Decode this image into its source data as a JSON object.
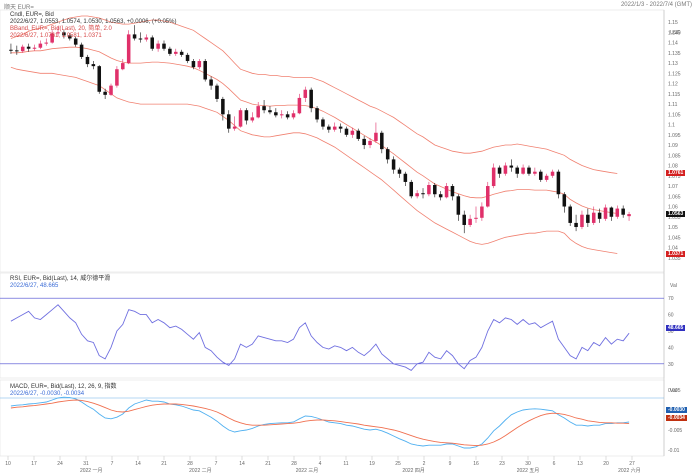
{
  "titlebar": {
    "left": "顺天 EUR=",
    "right": "2022/1/3 - 2022/7/4 (GMT)"
  },
  "price_panel": {
    "legend_line1": "Cndl, EUR=, Bid",
    "legend_line2": "2022/6/27, 1.0553, 1.0574, 1.0530, 1.0563, +0.0006, (+0.05%)",
    "legend_line3": "BBand, EUR=, Bid(Last), 20, 简单, 2.0",
    "legend_line4": "2022/6/27, 1.0761, 1.0581, 1.0371",
    "unit": "USD",
    "y_ticks": [
      "1.15",
      "1.145",
      "1.14",
      "1.135",
      "1.13",
      "1.125",
      "1.12",
      "1.115",
      "1.11",
      "1.105",
      "1.1",
      "1.095",
      "1.09",
      "1.085",
      "1.08",
      "1.075",
      "1.07",
      "1.065",
      "1.06",
      "1.055",
      "1.05",
      "1.045",
      "1.04",
      "1.035"
    ],
    "tag_upper": "1.0761",
    "tag_last": "1.0563",
    "tag_lower": "1.0371",
    "color_up": "#e0306a",
    "color_down": "#111111",
    "color_band": "#f08070"
  },
  "rsi_panel": {
    "legend_line1": "RSI, EUR=, Bid(Last), 14, 威尔德平滑",
    "legend_line2": "2022/6/27, 48.665",
    "unit": "Val",
    "y_ticks": [
      "70",
      "60",
      "50",
      "40",
      "30"
    ],
    "tag_value": "48.665",
    "color": "#7070e0"
  },
  "macd_panel": {
    "legend_line1": "MACD, EUR=, Bid(Last), 12, 26, 9, 指数",
    "legend_line2": "2022/6/27, -0.0030, -0.0034",
    "unit": "Val",
    "y_ticks": [
      "0.005",
      "0",
      "-0.005",
      "-0.01"
    ],
    "tag_macd": "-0.0030",
    "tag_signal": "-0.0034",
    "color_macd": "#50b0f0",
    "color_signal": "#f07050"
  },
  "x_axis": {
    "days": [
      "10",
      "17",
      "24",
      "31",
      "7",
      "14",
      "21",
      "28",
      "7",
      "14",
      "21",
      "28",
      "4",
      "11",
      "19",
      "25",
      "2",
      "9",
      "16",
      "23",
      "30",
      "6",
      "13",
      "20",
      "27"
    ],
    "months": [
      "2022 一月",
      "2022 二月",
      "2022 三月",
      "2022 四月",
      "2022 五月",
      "2022 六月"
    ]
  },
  "chart_data": {
    "type": "candlestick",
    "candles": [
      [
        1.1365,
        1.1362,
        1.1395,
        1.1345
      ],
      [
        1.1362,
        1.136,
        1.1385,
        1.134
      ],
      [
        1.1358,
        1.138,
        1.139,
        1.135
      ],
      [
        1.138,
        1.137,
        1.1395,
        1.1355
      ],
      [
        1.137,
        1.1375,
        1.139,
        1.136
      ],
      [
        1.1375,
        1.1395,
        1.141,
        1.1368
      ],
      [
        1.1395,
        1.14,
        1.142,
        1.1385
      ],
      [
        1.14,
        1.1445,
        1.146,
        1.1395
      ],
      [
        1.1445,
        1.145,
        1.148,
        1.143
      ],
      [
        1.145,
        1.1435,
        1.146,
        1.142
      ],
      [
        1.1435,
        1.142,
        1.1445,
        1.141
      ],
      [
        1.142,
        1.139,
        1.143,
        1.138
      ],
      [
        1.139,
        1.133,
        1.14,
        1.132
      ],
      [
        1.133,
        1.1295,
        1.134,
        1.128
      ],
      [
        1.1295,
        1.1285,
        1.131,
        1.127
      ],
      [
        1.1285,
        1.116,
        1.129,
        1.115
      ],
      [
        1.116,
        1.1145,
        1.1175,
        1.1125
      ],
      [
        1.1145,
        1.119,
        1.12,
        1.114
      ],
      [
        1.119,
        1.127,
        1.1285,
        1.118
      ],
      [
        1.127,
        1.13,
        1.132,
        1.1265
      ],
      [
        1.13,
        1.144,
        1.146,
        1.1295
      ],
      [
        1.144,
        1.142,
        1.1485,
        1.141
      ],
      [
        1.142,
        1.1415,
        1.145,
        1.14
      ],
      [
        1.1415,
        1.1425,
        1.144,
        1.1405
      ],
      [
        1.1425,
        1.137,
        1.1435,
        1.136
      ],
      [
        1.137,
        1.1395,
        1.141,
        1.1355
      ],
      [
        1.1395,
        1.137,
        1.141,
        1.136
      ],
      [
        1.137,
        1.1345,
        1.138,
        1.1335
      ],
      [
        1.1345,
        1.1355,
        1.137,
        1.1335
      ],
      [
        1.1355,
        1.134,
        1.1365,
        1.133
      ],
      [
        1.134,
        1.131,
        1.135,
        1.13
      ],
      [
        1.131,
        1.128,
        1.132,
        1.127
      ],
      [
        1.128,
        1.131,
        1.132,
        1.127
      ],
      [
        1.131,
        1.122,
        1.132,
        1.121
      ],
      [
        1.122,
        1.119,
        1.1235,
        1.117
      ],
      [
        1.119,
        1.1125,
        1.12,
        1.111
      ],
      [
        1.1125,
        1.105,
        1.1135,
        1.102
      ],
      [
        1.105,
        1.098,
        1.107,
        1.096
      ],
      [
        1.098,
        1.099,
        1.104,
        1.097
      ],
      [
        1.099,
        1.107,
        1.108,
        1.0985
      ],
      [
        1.107,
        1.102,
        1.108,
        1.1
      ],
      [
        1.102,
        1.1035,
        1.106,
        1.101
      ],
      [
        1.1035,
        1.109,
        1.111,
        1.103
      ],
      [
        1.109,
        1.107,
        1.112,
        1.1055
      ],
      [
        1.107,
        1.106,
        1.109,
        1.105
      ],
      [
        1.106,
        1.1045,
        1.108,
        1.1035
      ],
      [
        1.1045,
        1.105,
        1.107,
        1.103
      ],
      [
        1.105,
        1.1035,
        1.1065,
        1.1025
      ],
      [
        1.1035,
        1.1055,
        1.107,
        1.1025
      ],
      [
        1.1055,
        1.113,
        1.115,
        1.105
      ],
      [
        1.113,
        1.117,
        1.1185,
        1.111
      ],
      [
        1.117,
        1.108,
        1.118,
        1.106
      ],
      [
        1.108,
        1.1025,
        1.109,
        1.101
      ],
      [
        1.1025,
        1.099,
        1.1035,
        1.0975
      ],
      [
        1.099,
        1.0975,
        1.1,
        1.096
      ],
      [
        1.0975,
        1.099,
        1.101,
        1.0965
      ],
      [
        1.099,
        1.098,
        1.1005,
        1.096
      ],
      [
        1.098,
        1.095,
        1.099,
        1.094
      ],
      [
        1.095,
        1.097,
        1.0985,
        1.0935
      ],
      [
        1.097,
        1.093,
        1.098,
        1.092
      ],
      [
        1.093,
        1.09,
        1.0945,
        1.088
      ],
      [
        1.09,
        1.092,
        1.0935,
        1.0885
      ],
      [
        1.092,
        1.096,
        1.101,
        1.091
      ],
      [
        1.096,
        1.088,
        1.097,
        1.086
      ],
      [
        1.088,
        1.083,
        1.089,
        1.081
      ],
      [
        1.083,
        1.078,
        1.0845,
        1.076
      ],
      [
        1.078,
        1.076,
        1.079,
        1.074
      ],
      [
        1.076,
        1.072,
        1.077,
        1.07
      ],
      [
        1.072,
        1.065,
        1.073,
        1.064
      ],
      [
        1.065,
        1.0665,
        1.068,
        1.064
      ],
      [
        1.0665,
        1.066,
        1.069,
        1.064
      ],
      [
        1.066,
        1.0705,
        1.072,
        1.065
      ],
      [
        1.0705,
        1.066,
        1.0715,
        1.0645
      ],
      [
        1.066,
        1.0645,
        1.0675,
        1.063
      ],
      [
        1.0645,
        1.07,
        1.0715,
        1.064
      ],
      [
        1.07,
        1.065,
        1.071,
        1.063
      ],
      [
        1.065,
        1.056,
        1.066,
        1.053
      ],
      [
        1.056,
        1.051,
        1.058,
        1.047
      ],
      [
        1.051,
        1.054,
        1.056,
        1.05
      ],
      [
        1.054,
        1.0545,
        1.06,
        1.052
      ],
      [
        1.0545,
        1.06,
        1.062,
        1.053
      ],
      [
        1.06,
        1.07,
        1.072,
        1.0595
      ],
      [
        1.07,
        1.079,
        1.081,
        1.069
      ],
      [
        1.079,
        1.076,
        1.08,
        1.074
      ],
      [
        1.076,
        1.08,
        1.0815,
        1.075
      ],
      [
        1.08,
        1.079,
        1.083,
        1.077
      ],
      [
        1.079,
        1.076,
        1.08,
        1.074
      ],
      [
        1.076,
        1.079,
        1.0805,
        1.0755
      ],
      [
        1.079,
        1.076,
        1.08,
        1.075
      ],
      [
        1.076,
        1.077,
        1.079,
        1.075
      ],
      [
        1.077,
        1.073,
        1.078,
        1.072
      ],
      [
        1.073,
        1.075,
        1.076,
        1.072
      ],
      [
        1.075,
        1.077,
        1.078,
        1.074
      ],
      [
        1.077,
        1.066,
        1.078,
        1.064
      ],
      [
        1.066,
        1.06,
        1.067,
        1.057
      ],
      [
        1.06,
        1.052,
        1.061,
        1.0505
      ],
      [
        1.052,
        1.05,
        1.056,
        1.048
      ],
      [
        1.05,
        1.056,
        1.058,
        1.049
      ],
      [
        1.056,
        1.052,
        1.059,
        1.05
      ],
      [
        1.052,
        1.057,
        1.06,
        1.051
      ],
      [
        1.057,
        1.054,
        1.059,
        1.052
      ],
      [
        1.054,
        1.0595,
        1.061,
        1.053
      ],
      [
        1.0595,
        1.055,
        1.06,
        1.053
      ],
      [
        1.055,
        1.059,
        1.0605,
        1.054
      ],
      [
        1.059,
        1.056,
        1.0605,
        1.0545
      ],
      [
        1.0553,
        1.0563,
        1.0574,
        1.053
      ]
    ],
    "upper_band": [
      1.142,
      1.143,
      1.144,
      1.1455,
      1.1465,
      1.147,
      1.148,
      1.149,
      1.15,
      1.151,
      1.152,
      1.1525,
      1.153,
      1.153,
      1.1525,
      1.152,
      1.151,
      1.15,
      1.1495,
      1.149,
      1.149,
      1.1495,
      1.15,
      1.1505,
      1.151,
      1.151,
      1.1505,
      1.15,
      1.149,
      1.148,
      1.147,
      1.146,
      1.144,
      1.142,
      1.14,
      1.138,
      1.136,
      1.133,
      1.13,
      1.127,
      1.126,
      1.125,
      1.1245,
      1.1245,
      1.124,
      1.124,
      1.1235,
      1.1235,
      1.123,
      1.123,
      1.123,
      1.123,
      1.122,
      1.121,
      1.1195,
      1.118,
      1.1165,
      1.115,
      1.1135,
      1.112,
      1.1105,
      1.109,
      1.108,
      1.1065,
      1.105,
      1.1035,
      1.1015,
      1.0995,
      1.0975,
      1.0955,
      1.094,
      1.092,
      1.09,
      1.089,
      1.088,
      1.087,
      1.0865,
      1.086,
      1.086,
      1.0865,
      1.087,
      1.088,
      1.089,
      1.0895,
      1.09,
      1.09,
      1.0905,
      1.09,
      1.0895,
      1.089,
      1.0885,
      1.088,
      1.087,
      1.086,
      1.085,
      1.083,
      1.0815,
      1.08,
      1.079,
      1.078,
      1.0775,
      1.077,
      1.0765,
      1.0761
    ],
    "lower_band": [
      1.128,
      1.127,
      1.1265,
      1.126,
      1.1255,
      1.125,
      1.125,
      1.125,
      1.1245,
      1.124,
      1.1235,
      1.123,
      1.122,
      1.121,
      1.12,
      1.119,
      1.117,
      1.115,
      1.113,
      1.112,
      1.111,
      1.1105,
      1.11,
      1.11,
      1.11,
      1.11,
      1.11,
      1.11,
      1.11,
      1.11,
      1.11,
      1.1095,
      1.109,
      1.108,
      1.107,
      1.106,
      1.104,
      1.102,
      1.0995,
      1.097,
      1.096,
      1.095,
      1.0945,
      1.094,
      1.094,
      1.0945,
      1.095,
      1.0955,
      1.096,
      1.096,
      1.0955,
      1.0945,
      1.0935,
      1.092,
      1.0905,
      1.089,
      1.087,
      1.085,
      1.083,
      1.081,
      1.079,
      1.077,
      1.075,
      1.073,
      1.0705,
      1.068,
      1.0655,
      1.063,
      1.0605,
      1.058,
      1.056,
      1.054,
      1.052,
      1.0505,
      1.049,
      1.0475,
      1.046,
      1.0445,
      1.043,
      1.042,
      1.0415,
      1.042,
      1.043,
      1.044,
      1.045,
      1.0455,
      1.046,
      1.0465,
      1.047,
      1.047,
      1.0475,
      1.048,
      1.048,
      1.048,
      1.047,
      1.044,
      1.042,
      1.0405,
      1.0395,
      1.039,
      1.0385,
      1.038,
      1.0375,
      1.0371
    ],
    "rsi": [
      56,
      58,
      60,
      62,
      58,
      57,
      60,
      63,
      66,
      62,
      58,
      55,
      48,
      44,
      43,
      35,
      33,
      40,
      50,
      54,
      63,
      62,
      60,
      60,
      55,
      57,
      55,
      52,
      53,
      51,
      48,
      45,
      49,
      40,
      38,
      34,
      31,
      29,
      33,
      42,
      40,
      42,
      47,
      46,
      45,
      44,
      44,
      43,
      45,
      52,
      55,
      47,
      43,
      40,
      39,
      41,
      40,
      38,
      40,
      37,
      35,
      38,
      42,
      36,
      33,
      30,
      29,
      28,
      26,
      30,
      31,
      37,
      34,
      33,
      38,
      35,
      30,
      27,
      32,
      34,
      40,
      50,
      57,
      55,
      58,
      57,
      54,
      57,
      54,
      55,
      52,
      54,
      56,
      45,
      40,
      35,
      33,
      40,
      38,
      43,
      41,
      46,
      42,
      45,
      44,
      48.665
    ],
    "macd": [
      0.001,
      0.0012,
      0.0013,
      0.0015,
      0.0016,
      0.0018,
      0.002,
      0.0025,
      0.003,
      0.0032,
      0.0031,
      0.0028,
      0.002,
      0.001,
      0.0002,
      -0.001,
      -0.002,
      -0.0022,
      -0.0018,
      -0.001,
      0.0005,
      0.0015,
      0.002,
      0.0025,
      0.0022,
      0.0022,
      0.002,
      0.0015,
      0.0013,
      0.001,
      0.0005,
      0.0,
      -0.0002,
      -0.001,
      -0.0018,
      -0.0028,
      -0.004,
      -0.005,
      -0.0055,
      -0.0052,
      -0.005,
      -0.0046,
      -0.004,
      -0.0036,
      -0.0034,
      -0.0033,
      -0.0032,
      -0.0032,
      -0.003,
      -0.0022,
      -0.0015,
      -0.0016,
      -0.002,
      -0.0025,
      -0.003,
      -0.0032,
      -0.0034,
      -0.0038,
      -0.004,
      -0.0044,
      -0.0048,
      -0.005,
      -0.0048,
      -0.0052,
      -0.0058,
      -0.0065,
      -0.0072,
      -0.0078,
      -0.0085,
      -0.0088,
      -0.009,
      -0.0088,
      -0.0088,
      -0.0088,
      -0.0085,
      -0.0085,
      -0.009,
      -0.0095,
      -0.0095,
      -0.0092,
      -0.0085,
      -0.007,
      -0.0052,
      -0.004,
      -0.0025,
      -0.0012,
      -0.0005,
      0.0,
      0.0002,
      0.0003,
      0.0002,
      0.0,
      -0.0002,
      -0.0012,
      -0.002,
      -0.003,
      -0.0038,
      -0.0038,
      -0.004,
      -0.0038,
      -0.0038,
      -0.0034,
      -0.0034,
      -0.0032,
      -0.0032,
      -0.003
    ],
    "signal": [
      0.0005,
      0.0007,
      0.0008,
      0.001,
      0.0011,
      0.0013,
      0.0015,
      0.0017,
      0.002,
      0.0022,
      0.0024,
      0.0025,
      0.0024,
      0.0021,
      0.0017,
      0.0012,
      0.0006,
      0.0,
      -0.0004,
      -0.0005,
      -0.0003,
      0.0001,
      0.0005,
      0.0009,
      0.0012,
      0.0014,
      0.0015,
      0.0015,
      0.0015,
      0.0014,
      0.0012,
      0.001,
      0.0007,
      0.0004,
      0.0,
      -0.0005,
      -0.0012,
      -0.002,
      -0.0027,
      -0.0032,
      -0.0036,
      -0.0038,
      -0.0038,
      -0.0038,
      -0.0037,
      -0.0036,
      -0.0035,
      -0.0034,
      -0.0033,
      -0.0031,
      -0.0028,
      -0.0026,
      -0.0025,
      -0.0025,
      -0.0026,
      -0.0027,
      -0.0029,
      -0.0031,
      -0.0033,
      -0.0035,
      -0.0038,
      -0.004,
      -0.0042,
      -0.0044,
      -0.0047,
      -0.005,
      -0.0054,
      -0.0059,
      -0.0064,
      -0.0069,
      -0.0073,
      -0.0076,
      -0.0079,
      -0.0081,
      -0.0082,
      -0.0083,
      -0.0085,
      -0.0087,
      -0.0088,
      -0.0089,
      -0.0088,
      -0.0085,
      -0.008,
      -0.0073,
      -0.0064,
      -0.0054,
      -0.0044,
      -0.0035,
      -0.0027,
      -0.002,
      -0.0014,
      -0.001,
      -0.0008,
      -0.0009,
      -0.0011,
      -0.0015,
      -0.002,
      -0.0023,
      -0.0027,
      -0.0029,
      -0.0031,
      -0.0032,
      -0.0032,
      -0.0033,
      -0.0033,
      -0.0034
    ]
  }
}
